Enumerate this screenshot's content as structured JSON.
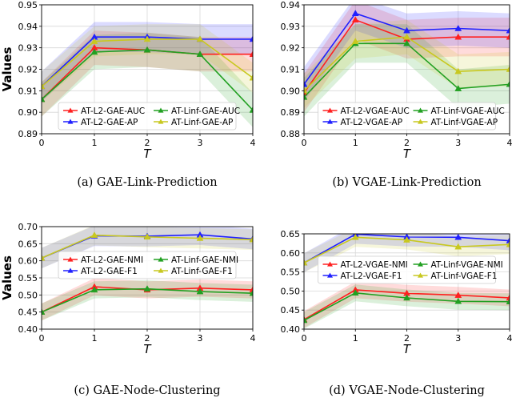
{
  "chart_data": [
    {
      "type": "line",
      "caption": "(a) GAE-Link-Prediction",
      "xlabel": "T",
      "ylabel": "Values",
      "x": [
        0,
        1,
        2,
        3,
        4
      ],
      "xlim": [
        0,
        4
      ],
      "ylim": [
        0.89,
        0.95
      ],
      "yticks": [
        "0.89",
        "0.90",
        "0.91",
        "0.92",
        "0.93",
        "0.94",
        "0.95"
      ],
      "xticks": [
        "0",
        "1",
        "2",
        "3",
        "4"
      ],
      "legend_loc": "lower-center",
      "series": [
        {
          "name": "AT-L2-GAE-AUC",
          "color": "#ff2020",
          "marker": "triangle-up",
          "values": [
            0.906,
            0.93,
            0.929,
            0.927,
            0.927
          ],
          "band": 0.008
        },
        {
          "name": "AT-Linf-GAE-AUC",
          "color": "#22a022",
          "marker": "triangle-up",
          "values": [
            0.906,
            0.928,
            0.929,
            0.927,
            0.901
          ],
          "band": 0.008
        },
        {
          "name": "AT-L2-GAE-AP",
          "color": "#2020ff",
          "marker": "triangle-up",
          "values": [
            0.912,
            0.935,
            0.935,
            0.934,
            0.934
          ],
          "band": 0.007
        },
        {
          "name": "AT-Linf-GAE-AP",
          "color": "#c8c820",
          "marker": "triangle-up",
          "values": [
            0.912,
            0.933,
            0.934,
            0.934,
            0.916
          ],
          "band": 0.007
        }
      ]
    },
    {
      "type": "line",
      "caption": "(b) VGAE-Link-Prediction",
      "xlabel": "T",
      "ylabel": "",
      "x": [
        0,
        1,
        2,
        3,
        4
      ],
      "xlim": [
        0,
        4
      ],
      "ylim": [
        0.88,
        0.94
      ],
      "yticks": [
        "0.88",
        "0.89",
        "0.90",
        "0.91",
        "0.92",
        "0.93",
        "0.94"
      ],
      "xticks": [
        "0",
        "1",
        "2",
        "3",
        "4"
      ],
      "legend_loc": "lower-center",
      "series": [
        {
          "name": "AT-L2-VGAE-AUC",
          "color": "#ff2020",
          "marker": "triangle-up",
          "values": [
            0.899,
            0.933,
            0.924,
            0.925,
            0.925
          ],
          "band": 0.009
        },
        {
          "name": "AT-Linf-VGAE-AUC",
          "color": "#22a022",
          "marker": "triangle-up",
          "values": [
            0.897,
            0.922,
            0.922,
            0.901,
            0.903
          ],
          "band": 0.009
        },
        {
          "name": "AT-L2-VGAE-AP",
          "color": "#2020ff",
          "marker": "triangle-up",
          "values": [
            0.903,
            0.936,
            0.928,
            0.929,
            0.928
          ],
          "band": 0.008
        },
        {
          "name": "AT-Linf-VGAE-AP",
          "color": "#c8c820",
          "marker": "triangle-up",
          "values": [
            0.9,
            0.923,
            0.925,
            0.909,
            0.91
          ],
          "band": 0.008
        }
      ]
    },
    {
      "type": "line",
      "caption": "(c) GAE-Node-Clustering",
      "xlabel": "T",
      "ylabel": "Values",
      "x": [
        0,
        1,
        2,
        3,
        4
      ],
      "xlim": [
        0,
        4
      ],
      "ylim": [
        0.4,
        0.7
      ],
      "yticks": [
        "0.40",
        "0.45",
        "0.50",
        "0.55",
        "0.60",
        "0.65",
        "0.70"
      ],
      "xticks": [
        "0",
        "1",
        "2",
        "3",
        "4"
      ],
      "legend_loc": "center",
      "series": [
        {
          "name": "AT-L2-GAE-NMI",
          "color": "#ff2020",
          "marker": "triangle-up",
          "values": [
            0.45,
            0.524,
            0.515,
            0.52,
            0.515
          ],
          "band": 0.025
        },
        {
          "name": "AT-Linf-GAE-NMI",
          "color": "#22a022",
          "marker": "triangle-up",
          "values": [
            0.45,
            0.515,
            0.518,
            0.51,
            0.505
          ],
          "band": 0.025
        },
        {
          "name": "AT-L2-GAE-F1",
          "color": "#2020ff",
          "marker": "triangle-up",
          "values": [
            0.608,
            0.673,
            0.672,
            0.676,
            0.664
          ],
          "band": 0.03
        },
        {
          "name": "AT-Linf-GAE-F1",
          "color": "#c8c820",
          "marker": "triangle-up",
          "values": [
            0.608,
            0.675,
            0.67,
            0.666,
            0.662
          ],
          "band": 0.03
        }
      ]
    },
    {
      "type": "line",
      "caption": "(d) VGAE-Node-Clustering",
      "xlabel": "T",
      "ylabel": "",
      "x": [
        0,
        1,
        2,
        3,
        4
      ],
      "xlim": [
        0,
        4
      ],
      "ylim": [
        0.4,
        0.65
      ],
      "yticks": [
        "0.40",
        "0.45",
        "0.50",
        "0.55",
        "0.60",
        "0.65"
      ],
      "xticks": [
        "0",
        "1",
        "2",
        "3",
        "4"
      ],
      "legend_loc": "center",
      "series": [
        {
          "name": "AT-L2-VGAE-NMI",
          "color": "#ff2020",
          "marker": "triangle-up",
          "values": [
            0.425,
            0.503,
            0.494,
            0.489,
            0.482
          ],
          "band": 0.022
        },
        {
          "name": "AT-Linf-VGAE-NMI",
          "color": "#22a022",
          "marker": "triangle-up",
          "values": [
            0.423,
            0.495,
            0.482,
            0.473,
            0.472
          ],
          "band": 0.022
        },
        {
          "name": "AT-L2-VGAE-F1",
          "color": "#2020ff",
          "marker": "triangle-up",
          "values": [
            0.574,
            0.649,
            0.642,
            0.641,
            0.632
          ],
          "band": 0.025
        },
        {
          "name": "AT-Linf-VGAE-F1",
          "color": "#c8c820",
          "marker": "triangle-up",
          "values": [
            0.574,
            0.641,
            0.634,
            0.616,
            0.622
          ],
          "band": 0.025
        }
      ]
    }
  ]
}
